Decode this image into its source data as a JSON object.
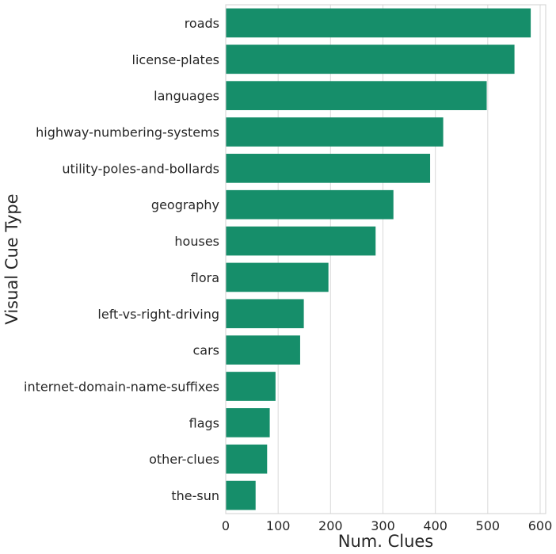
{
  "chart_data": {
    "type": "bar",
    "orientation": "horizontal",
    "xlabel": "Num. Clues",
    "ylabel": "Visual Cue Type",
    "xlim": [
      0,
      610
    ],
    "xticks": [
      0,
      100,
      200,
      300,
      400,
      500,
      600
    ],
    "grid": "vertical",
    "color": "#168E6A",
    "categories": [
      "roads",
      "license-plates",
      "languages",
      "highway-numbering-systems",
      "utility-poles-and-bollards",
      "geography",
      "houses",
      "flora",
      "left-vs-right-driving",
      "cars",
      "internet-domain-name-suffixes",
      "flags",
      "other-clues",
      "the-sun"
    ],
    "values": [
      582,
      551,
      498,
      415,
      390,
      320,
      286,
      196,
      149,
      142,
      95,
      84,
      79,
      57
    ]
  }
}
